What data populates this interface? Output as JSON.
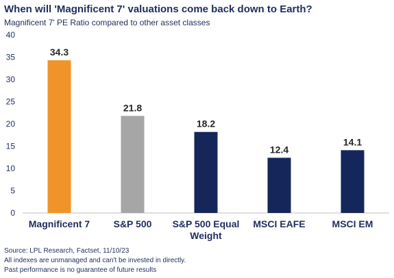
{
  "title": "When will 'Magnificent 7' valuations come back down to Earth?",
  "subtitle": "Magnificent 7' PE Ratio compared to other asset classes",
  "chart_data": {
    "type": "bar",
    "categories": [
      "Magnificent 7",
      "S&P 500",
      "S&P 500 Equal Weight",
      "MSCI EAFE",
      "MSCI EM"
    ],
    "category_lines": [
      [
        "Magnificent 7"
      ],
      [
        "S&P 500"
      ],
      [
        "S&P 500 Equal",
        "Weight"
      ],
      [
        "MSCI EAFE"
      ],
      [
        "MSCI EM"
      ]
    ],
    "values": [
      34.3,
      21.8,
      18.2,
      12.4,
      14.1
    ],
    "data_labels": [
      "34.3",
      "21.8",
      "18.2",
      "12.4",
      "14.1"
    ],
    "colors": [
      "#f0942a",
      "#a6a6a6",
      "#15275a",
      "#15275a",
      "#15275a"
    ],
    "ylim": [
      0,
      40
    ],
    "yticks": [
      0,
      5,
      10,
      15,
      20,
      25,
      30,
      35,
      40
    ],
    "grid": false,
    "xlabel": "",
    "ylabel": ""
  },
  "footnotes": [
    "Source: LPL Research, Factset, 11/10/23",
    "All indexes are unmanaged and can't be invested in directly.",
    "Past performance is no guarantee of future results"
  ]
}
